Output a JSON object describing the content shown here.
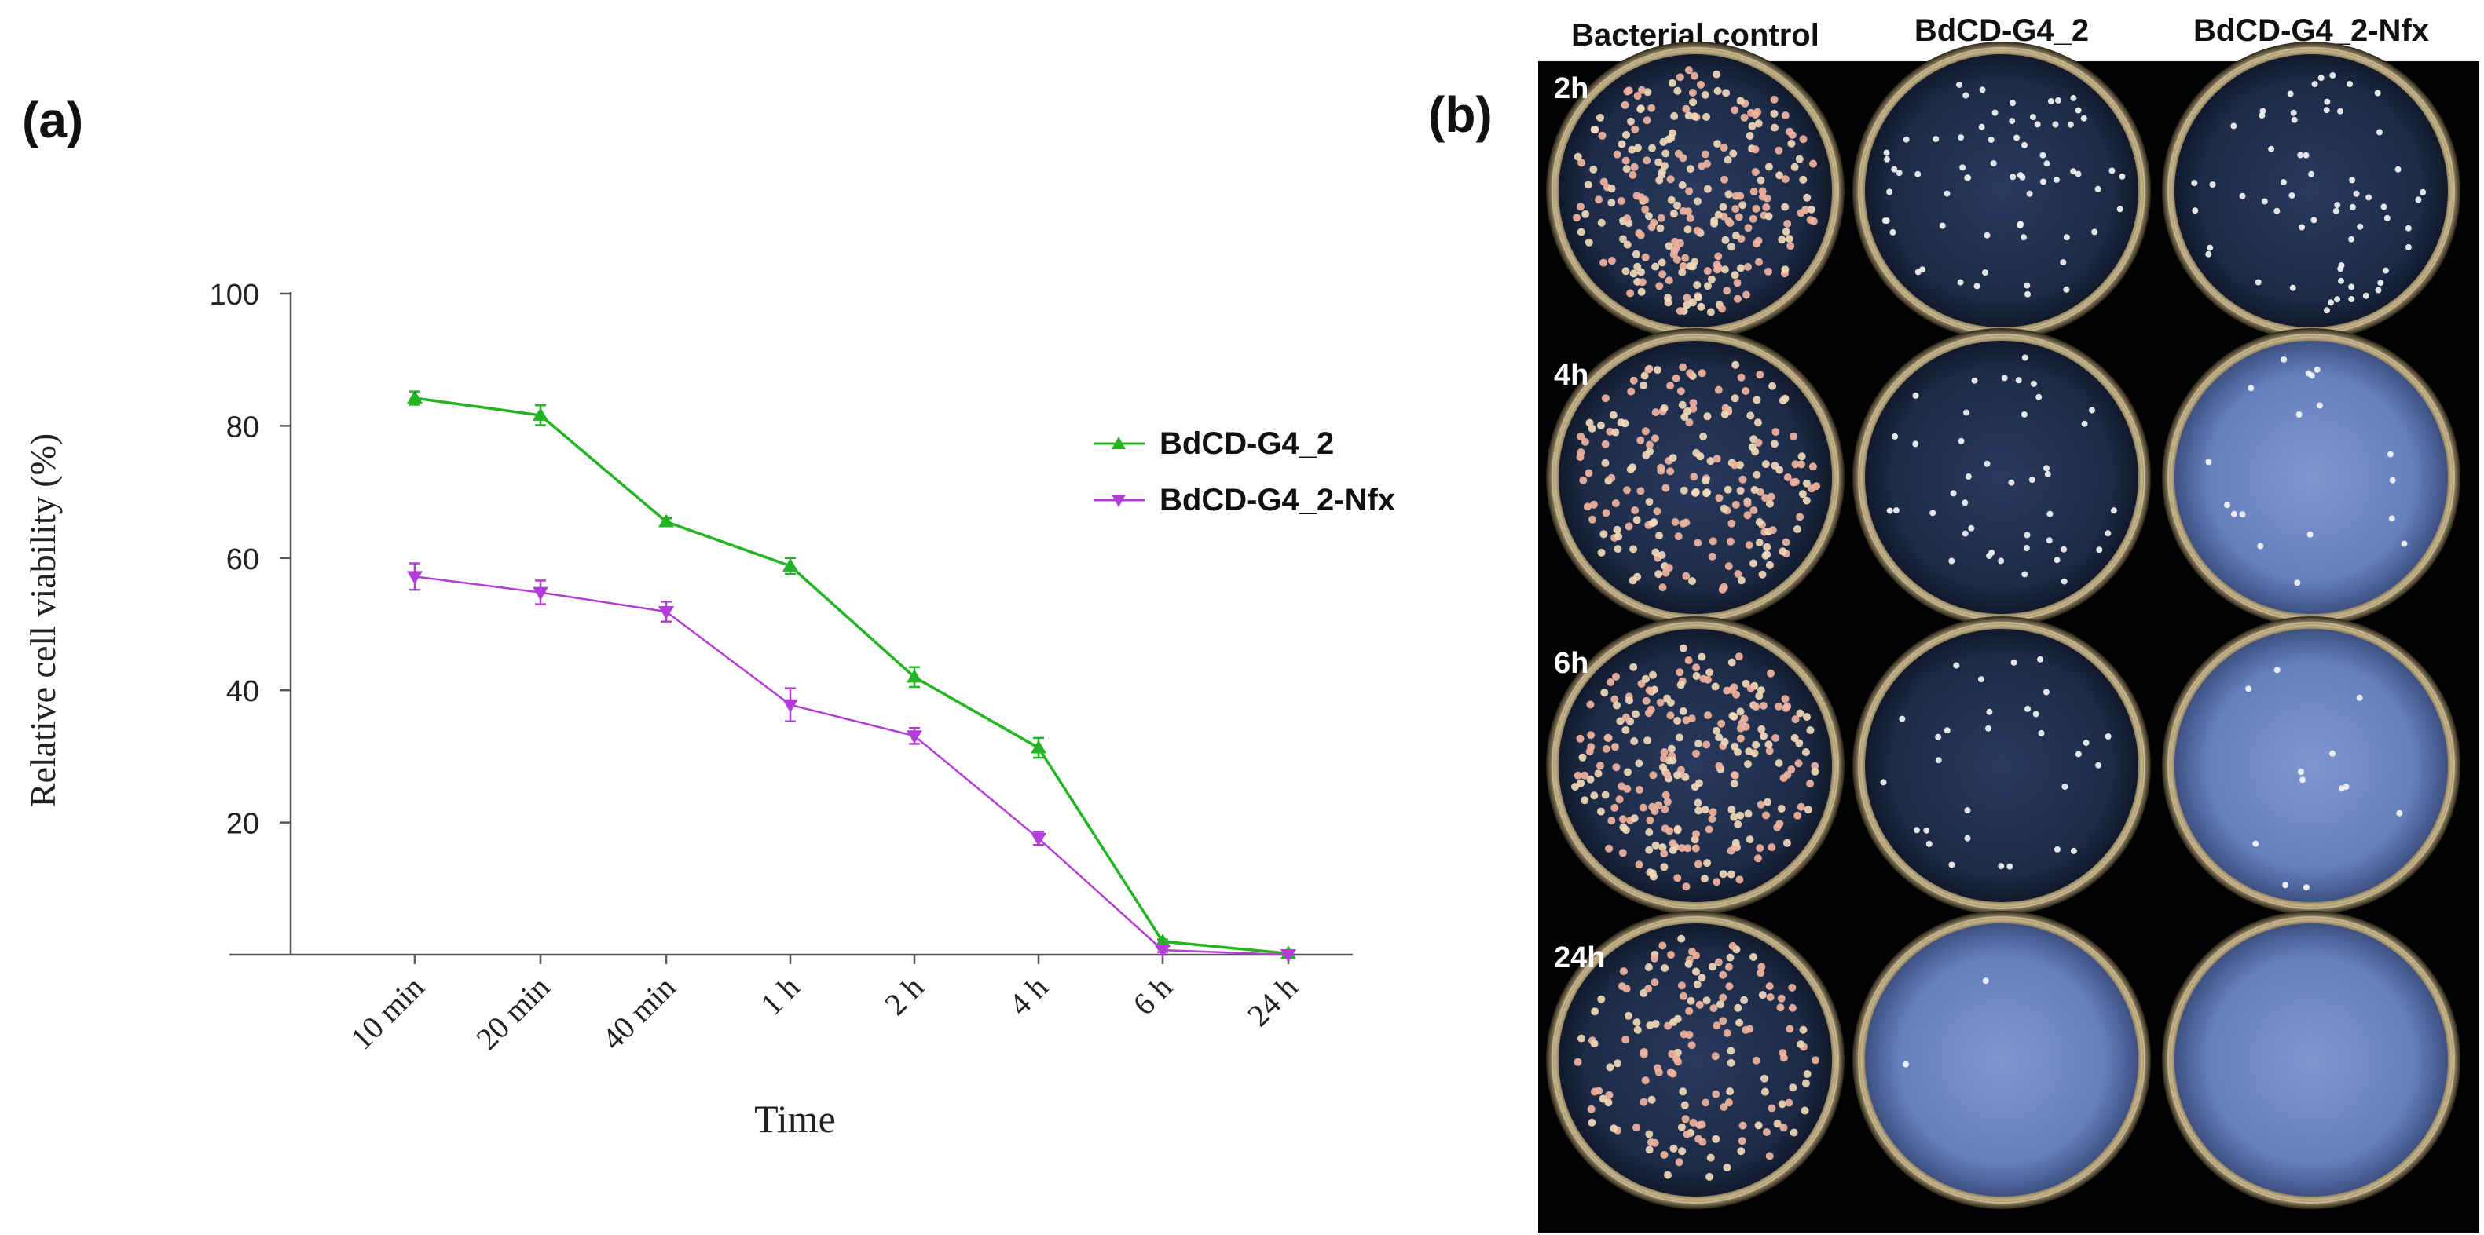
{
  "panel_a": {
    "label": "(a)",
    "chart_data": {
      "type": "line",
      "categories": [
        "10 min",
        "20 min",
        "40 min",
        "1 h",
        "2 h",
        "4 h",
        "6 h",
        "24 h"
      ],
      "xlabel": "Time",
      "ylabel": "Relative cell viability (%)",
      "ylim": [
        0,
        100
      ],
      "yticks": [
        20,
        40,
        60,
        80,
        100
      ],
      "legend_position": "right",
      "grid": false,
      "series": [
        {
          "name": "BdCD-G4_2",
          "marker": "triangle-up",
          "color": "#22b422",
          "values": [
            84.2,
            81.6,
            65.5,
            58.8,
            42.0,
            31.3,
            2.0,
            0.2
          ],
          "errors": [
            1.0,
            1.5,
            0.5,
            1.2,
            1.5,
            1.5,
            0.3,
            0.2
          ]
        },
        {
          "name": "BdCD-G4_2-Nfx",
          "marker": "triangle-down",
          "color": "#b43cd6",
          "values": [
            57.2,
            54.8,
            51.9,
            37.8,
            33.1,
            17.6,
            0.7,
            0.0
          ],
          "errors": [
            2.0,
            1.8,
            1.5,
            2.5,
            1.2,
            1.0,
            0.3,
            0.2
          ]
        }
      ]
    }
  },
  "panel_b": {
    "label": "(b)",
    "column_headers": [
      "Bacterial control",
      "BdCD-G4_2",
      "BdCD-G4_2-Nfx"
    ],
    "row_labels": [
      "2h",
      "4h",
      "6h",
      "24h"
    ],
    "colony_density": [
      [
        0.95,
        0.55,
        0.5
      ],
      [
        0.75,
        0.35,
        0.15
      ],
      [
        0.9,
        0.25,
        0.1
      ],
      [
        0.6,
        0.02,
        0.0
      ]
    ]
  }
}
